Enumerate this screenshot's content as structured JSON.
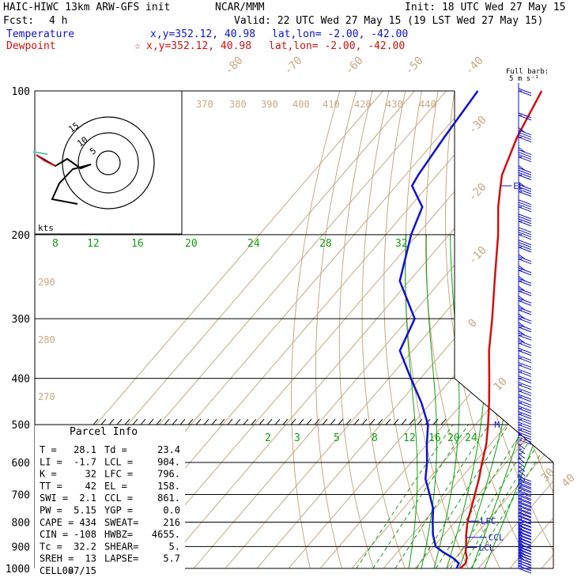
{
  "header": {
    "model": "HAIC-HIWC 13km ARW-GFS init",
    "org": "NCAR/MMM",
    "init": "Init: 18 UTC Wed 27 May 15",
    "fcst_label": "Fcst:",
    "fcst_value": "4 h",
    "valid": "Valid: 22 UTC Wed 27 May 15 (19 LST Wed 27 May 15)",
    "temperature_label": "Temperature",
    "dewpoint_label": "Dewpoint",
    "temp_xy": "x,y=352.12, 40.98",
    "temp_latlon": "lat,lon= -2.00, -42.00",
    "dew_xy": "x,y=352.12, 40.98",
    "dew_latlon": "lat,lon= -2.00, -42.00",
    "dew_marker": "☆",
    "full_barb": "Full barb:",
    "full_barb_unit": "5 m s⁻¹"
  },
  "colors": {
    "temperature": "#d01010",
    "dewpoint": "#1010d0",
    "dry_adiabat": "#c8a882",
    "isotherm": "#c8a882",
    "moist_adiabat": "#10a010",
    "mixing_ratio": "#10a010",
    "isobar": "#000000",
    "wind_barb": "#1010d0"
  },
  "hodograph": {
    "rings": [
      "5",
      "10",
      "15"
    ],
    "units": "kts"
  },
  "parcel_info": {
    "title": "Parcel Info",
    "rows": [
      [
        "T  =",
        "28.1",
        "Td =",
        "23.4"
      ],
      [
        "LI =",
        "-1.7",
        "LCL =",
        "904."
      ],
      [
        "K  =",
        "32",
        "LFC =",
        "796."
      ],
      [
        "TT =",
        "42",
        "EL =",
        "158."
      ],
      [
        "SWI =",
        "2.1",
        "CCL =",
        "861."
      ],
      [
        "PW =",
        "5.15",
        "YGP =",
        "0.0"
      ],
      [
        "CAPE =",
        "434",
        "SWEAT=",
        "216"
      ],
      [
        "CIN =",
        "-108",
        "HWBZ=",
        "4655."
      ],
      [
        "Tc =",
        "32.2",
        "SHEAR=",
        "5."
      ],
      [
        "SREH =",
        "13",
        "LAPSE=",
        "5.7"
      ],
      [
        "CELL =",
        "087/15",
        "",
        ""
      ]
    ]
  },
  "chart_data": {
    "type": "line",
    "title": "",
    "ylabel": "",
    "y_scale": "log-pressure",
    "pressure_ticks": [
      "100",
      "200",
      "300",
      "400",
      "500",
      "600",
      "700",
      "800",
      "900",
      "1000"
    ],
    "pressure_values": [
      100,
      200,
      300,
      400,
      500,
      600,
      700,
      800,
      900,
      1000
    ],
    "isotherm_labels": [
      "-80",
      "-70",
      "-60",
      "-50",
      "-40",
      "-30",
      "-20",
      "-10",
      "0",
      "10",
      "20",
      "30",
      "40"
    ],
    "dry_adiabat_labels": [
      "370",
      "380",
      "390",
      "400",
      "410",
      "420",
      "430",
      "440",
      "290",
      "280",
      "270"
    ],
    "moist_adiabat_labels": [
      "8",
      "12",
      "16",
      "20",
      "24",
      "28",
      "32"
    ],
    "mixing_ratio_labels": [
      "2",
      "3",
      "5",
      "8",
      "12",
      "16",
      "20",
      "24"
    ],
    "level_markers": [
      "EL",
      "LFC",
      "CCL",
      "LCL",
      "M"
    ],
    "series": [
      {
        "name": "Temperature",
        "pressure_hPa": [
          1000,
          975,
          950,
          925,
          900,
          850,
          800,
          750,
          700,
          650,
          600,
          550,
          500,
          450,
          400,
          350,
          300,
          250,
          200,
          175,
          158,
          150,
          125,
          100
        ],
        "temperature_C": [
          24.3,
          24.6,
          23.5,
          21.6,
          20.2,
          17.0,
          14.0,
          11.5,
          8.8,
          5.9,
          2.4,
          -1.2,
          -6.0,
          -11.6,
          -18.2,
          -25.8,
          -33.5,
          -43.0,
          -54.5,
          -62.0,
          -67.0,
          -69.5,
          -75.0,
          -79.8
        ]
      },
      {
        "name": "Dewpoint",
        "pressure_hPa": [
          1000,
          975,
          950,
          925,
          900,
          850,
          800,
          750,
          700,
          650,
          600,
          550,
          500,
          450,
          400,
          350,
          300,
          250,
          200,
          175,
          158,
          150,
          125,
          100
        ],
        "temperature_C": [
          23.2,
          22.4,
          19.0,
          14.5,
          10.6,
          6.5,
          3.0,
          -0.5,
          -5.5,
          -11.0,
          -15.0,
          -20.0,
          -25.0,
          -33.0,
          -43.0,
          -54.0,
          -58.0,
          -73.0,
          -82.0,
          -86.0,
          -95.0,
          -96.0,
          -98.0,
          -100.0
        ]
      }
    ],
    "wind_barbs_kt": [
      {
        "pressure_hPa": 1000,
        "speed_kt": 10,
        "direction_deg": 90
      },
      {
        "pressure_hPa": 950,
        "speed_kt": 15,
        "direction_deg": 90
      },
      {
        "pressure_hPa": 900,
        "speed_kt": 15,
        "direction_deg": 90
      },
      {
        "pressure_hPa": 850,
        "speed_kt": 15,
        "direction_deg": 90
      },
      {
        "pressure_hPa": 800,
        "speed_kt": 10,
        "direction_deg": 90
      },
      {
        "pressure_hPa": 750,
        "speed_kt": 10,
        "direction_deg": 90
      },
      {
        "pressure_hPa": 700,
        "speed_kt": 10,
        "direction_deg": 90
      },
      {
        "pressure_hPa": 600,
        "speed_kt": 5,
        "direction_deg": 90
      },
      {
        "pressure_hPa": 500,
        "speed_kt": 10,
        "direction_deg": 90
      },
      {
        "pressure_hPa": 400,
        "speed_kt": 10,
        "direction_deg": 90
      },
      {
        "pressure_hPa": 300,
        "speed_kt": 15,
        "direction_deg": 90
      },
      {
        "pressure_hPa": 250,
        "speed_kt": 15,
        "direction_deg": 90
      },
      {
        "pressure_hPa": 200,
        "speed_kt": 20,
        "direction_deg": 90
      },
      {
        "pressure_hPa": 150,
        "speed_kt": 25,
        "direction_deg": 90
      },
      {
        "pressure_hPa": 100,
        "speed_kt": 10,
        "direction_deg": 90
      }
    ]
  }
}
